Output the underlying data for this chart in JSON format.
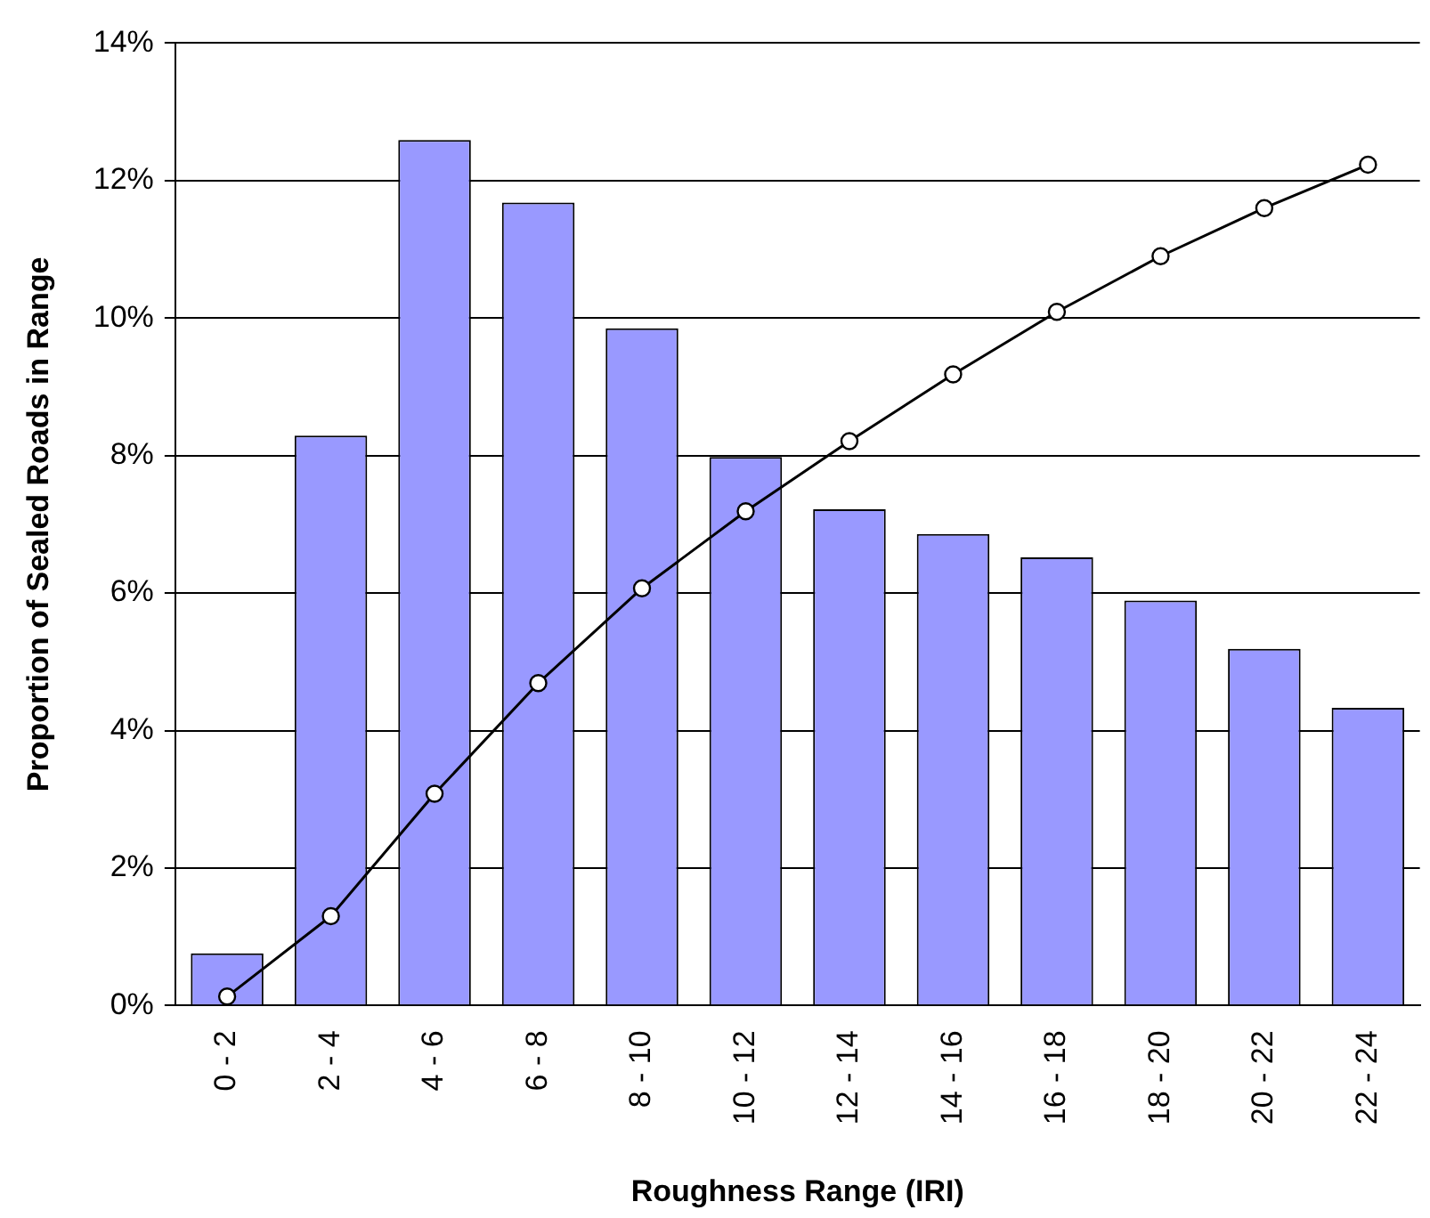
{
  "chart_data": {
    "type": "bar",
    "xlabel": "Roughness Range (IRI)",
    "ylabel": "Proportion of Sealed Roads in Range",
    "categories": [
      "0 - 2",
      "2 - 4",
      "4 - 6",
      "6 - 8",
      "8 - 10",
      "10 - 12",
      "12 - 14",
      "14 - 16",
      "16 - 18",
      "18 - 20",
      "20 - 22",
      "22 - 24"
    ],
    "series": [
      {
        "color": "#9999ff",
        "values": [
          0.76,
          8.29,
          12.59,
          11.68,
          9.85,
          7.98,
          7.22,
          6.86,
          6.52,
          5.89,
          5.19,
          4.33
        ]
      },
      {
        "type": "line",
        "color": "#000000",
        "marker": "circle",
        "line_style": "solid",
        "values": [
          0.13,
          1.3,
          3.08,
          4.69,
          6.07,
          7.19,
          8.21,
          9.18,
          10.09,
          10.9,
          11.6,
          12.23
        ]
      }
    ],
    "ylim": [
      0,
      14
    ],
    "yticks": [
      {
        "value": 0,
        "label": "0%"
      },
      {
        "value": 2,
        "label": "2%"
      },
      {
        "value": 4,
        "label": "4%"
      },
      {
        "value": 6,
        "label": "6%"
      },
      {
        "value": 8,
        "label": "8%"
      },
      {
        "value": 10,
        "label": "10%"
      },
      {
        "value": 12,
        "label": "12%"
      },
      {
        "value": 14,
        "label": "14%"
      }
    ],
    "grid": "y",
    "legend": false
  }
}
